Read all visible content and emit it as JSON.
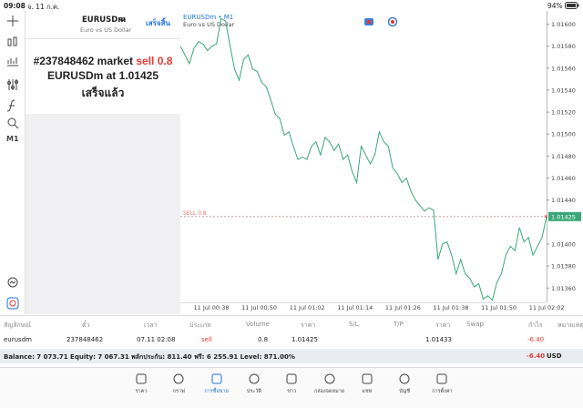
{
  "status_bar": {
    "time": "09:08",
    "date": "จ. 11 ก.ค.",
    "battery": "94%"
  },
  "toolbar": {
    "timeframe": "M1"
  },
  "order_panel": {
    "symbol": "EURUSDm",
    "description": "Euro vs US Dollar",
    "done_button": "เสร็จสิ้น",
    "message": {
      "order": "#237848462 market",
      "action": "sell 0.8",
      "symbol_at": "EURUSDm at",
      "price": "1.01425",
      "status": "เสร็จแล้ว"
    }
  },
  "chart": {
    "type": "line",
    "title": "EURUSDm • M1",
    "subtitle": "Euro vs US Dollar",
    "order_line_label": "SELL 0.8",
    "current_price": {
      "value": 1.01425,
      "label": "1.01425"
    },
    "color": "#3aa876",
    "ylim": [
      1.01347,
      1.01612
    ],
    "yticks": [
      {
        "value": 1.016,
        "label": "1.01600"
      },
      {
        "value": 1.0158,
        "label": "1.01580"
      },
      {
        "value": 1.0156,
        "label": "1.01560"
      },
      {
        "value": 1.0154,
        "label": "1.01540"
      },
      {
        "value": 1.0152,
        "label": "1.01520"
      },
      {
        "value": 1.015,
        "label": "1.01500"
      },
      {
        "value": 1.0148,
        "label": "1.01480"
      },
      {
        "value": 1.0146,
        "label": "1.01460"
      },
      {
        "value": 1.0144,
        "label": "1.01440"
      },
      {
        "value": 1.014,
        "label": "1.01400"
      },
      {
        "value": 1.0138,
        "label": "1.01380"
      },
      {
        "value": 1.0136,
        "label": "1.01360"
      }
    ],
    "xticks": [
      "11 Jul 00:38",
      "11 Jul 00:50",
      "11 Jul 01:02",
      "11 Jul 01:14",
      "11 Jul 01:26",
      "11 Jul 01:38",
      "11 Jul 01:50",
      "11 Jul 02:02"
    ],
    "prices": [
      1.0158,
      1.01572,
      1.01564,
      1.01578,
      1.01584,
      1.01582,
      1.01576,
      1.0158,
      1.01582,
      1.01605,
      1.01603,
      1.0158,
      1.01559,
      1.01549,
      1.01568,
      1.01572,
      1.01559,
      1.01557,
      1.01547,
      1.01543,
      1.01531,
      1.01518,
      1.01514,
      1.01499,
      1.01502,
      1.01489,
      1.01477,
      1.01479,
      1.01477,
      1.01489,
      1.01493,
      1.01481,
      1.01497,
      1.01493,
      1.01485,
      1.01491,
      1.01477,
      1.01481,
      1.01466,
      1.01456,
      1.01489,
      1.01481,
      1.01473,
      1.01481,
      1.01502,
      1.01493,
      1.01489,
      1.01469,
      1.01464,
      1.01456,
      1.0146,
      1.01448,
      1.0144,
      1.01435,
      1.0143,
      1.01433,
      1.01431,
      1.01386,
      1.014,
      1.01402,
      1.0139,
      1.01373,
      1.01386,
      1.01373,
      1.01369,
      1.01361,
      1.01364,
      1.0135,
      1.01353,
      1.01349,
      1.01365,
      1.01373,
      1.0139,
      1.01398,
      1.01394,
      1.01415,
      1.01402,
      1.01406,
      1.0139,
      1.01398,
      1.01406,
      1.01425
    ]
  },
  "positions_table": {
    "columns": [
      "สัญลักษณ์",
      "ตั๋ว",
      "เวลา",
      "ประเภท",
      "Volume",
      "ราคา",
      "S/L",
      "T/P",
      "ราคา",
      "Swap",
      "กำไร",
      "หมายเหตุ"
    ],
    "rows": [
      {
        "symbol": "eurusdm",
        "ticket": "237848462",
        "time": "07.11 02:08",
        "type": "sell",
        "volume": "0.8",
        "price": "1.01425",
        "current_price": "1.01433",
        "profit": "-6.40"
      }
    ]
  },
  "balance": {
    "text": "Balance: 7 073.71 Equity: 7 067.31 พลักประกัน: 811.40 ฟรี: 6 255.91 Level: 871.00%",
    "profit": "-6.40",
    "currency": "USD"
  },
  "nav": {
    "items": [
      "ราคา",
      "กราฟ",
      "การซื้อขาย",
      "ประวัติ",
      "ข่าว",
      "กล่องจดหมาย",
      "แชท",
      "บัญชี",
      "การตั้งค่า"
    ],
    "active": 2
  }
}
